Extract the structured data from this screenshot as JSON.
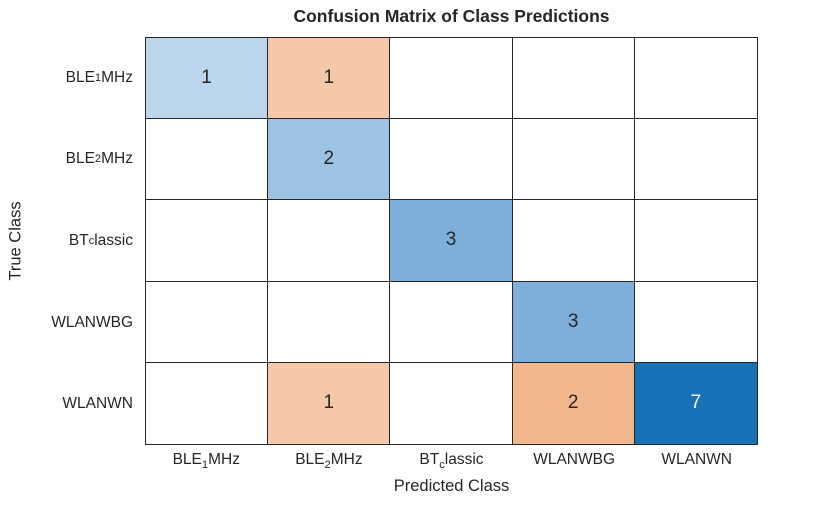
{
  "title": "Confusion Matrix of Class Predictions",
  "colors": {
    "text": "#262626",
    "grid_line": "#262626",
    "cell_text_dark": "#262626",
    "cell_text_light": "#ffffff",
    "diag_blue_1": "#BCD7EC",
    "diag_blue_2": "#9CC3E4",
    "diag_blue_3": "#7EAFDA",
    "diag_blue_7": "#1772B8",
    "offdiag_orange_1": "#F4C8A8",
    "offdiag_orange_2": "#F2B68C",
    "empty_cell": "#FFFFFF"
  },
  "chart_data": {
    "type": "heatmap",
    "subtype": "confusion-matrix",
    "title": "Confusion Matrix of Class Predictions",
    "xlabel": "Predicted Class",
    "ylabel": "True Class",
    "classes": [
      {
        "pre": "BLE",
        "sub": "1",
        "post": "MHz",
        "plain": "BLE1MHz"
      },
      {
        "pre": "BLE",
        "sub": "2",
        "post": "MHz",
        "plain": "BLE2MHz"
      },
      {
        "pre": "BT",
        "sub": "c",
        "post": "lassic",
        "plain": "BTclassic"
      },
      {
        "pre": "WLANWBG",
        "sub": "",
        "post": "",
        "plain": "WLANWBG"
      },
      {
        "pre": "WLANWN",
        "sub": "",
        "post": "",
        "plain": "WLANWN"
      }
    ],
    "matrix": [
      [
        1,
        1,
        0,
        0,
        0
      ],
      [
        0,
        2,
        0,
        0,
        0
      ],
      [
        0,
        0,
        3,
        0,
        0
      ],
      [
        0,
        0,
        0,
        3,
        0
      ],
      [
        0,
        1,
        0,
        2,
        7
      ]
    ],
    "cell_colors": [
      [
        "#BCD7EC",
        "#F4C8A8",
        "#FFFFFF",
        "#FFFFFF",
        "#FFFFFF"
      ],
      [
        "#FFFFFF",
        "#9CC3E4",
        "#FFFFFF",
        "#FFFFFF",
        "#FFFFFF"
      ],
      [
        "#FFFFFF",
        "#FFFFFF",
        "#7EAFDA",
        "#FFFFFF",
        "#FFFFFF"
      ],
      [
        "#FFFFFF",
        "#FFFFFF",
        "#FFFFFF",
        "#7EAFDA",
        "#FFFFFF"
      ],
      [
        "#FFFFFF",
        "#F4C8A8",
        "#FFFFFF",
        "#F2B68C",
        "#1772B8"
      ]
    ],
    "white_text_cells": [
      [
        4,
        4
      ]
    ],
    "grid_rows": 5,
    "grid_cols": 5,
    "legend": "none",
    "axis_ticks_visible": false
  }
}
